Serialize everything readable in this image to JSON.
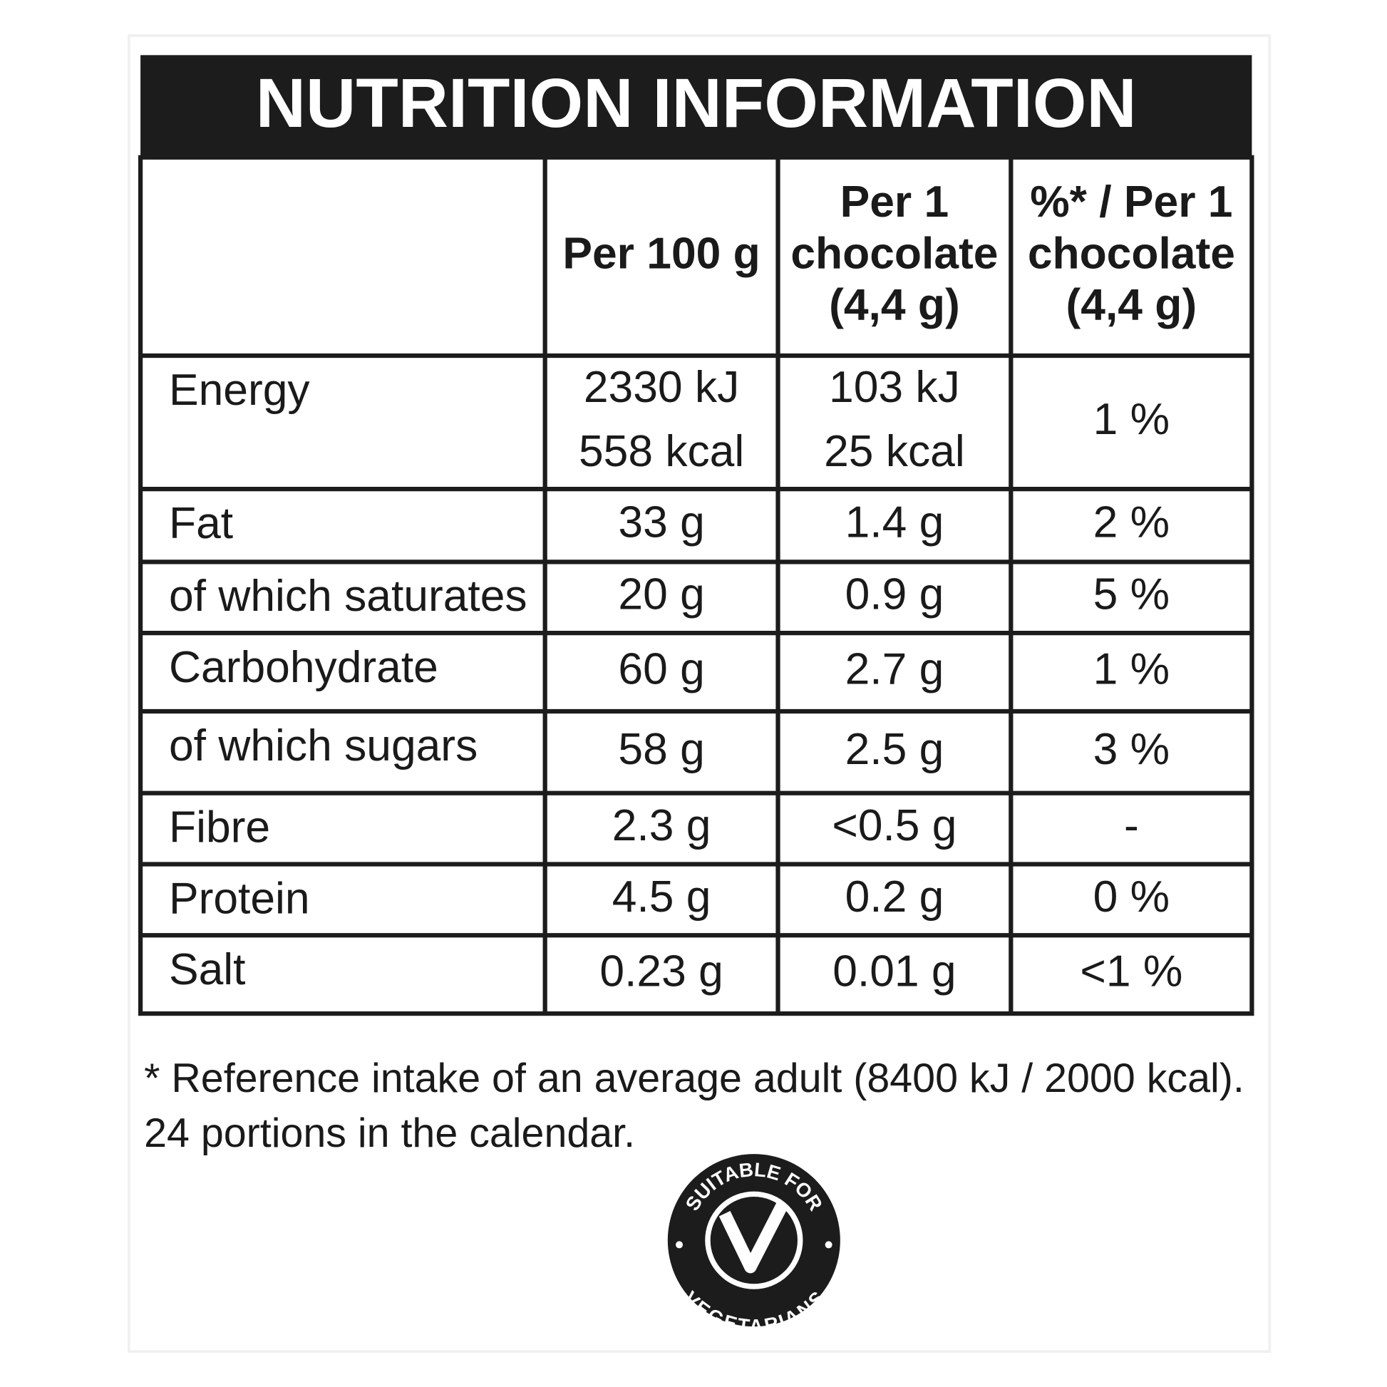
{
  "title": "NUTRITION INFORMATION",
  "table": {
    "header": [
      [],
      [
        "Per 100 g"
      ],
      [
        "Per 1",
        "chocolate",
        "(4,4 g)"
      ],
      [
        "%* / Per 1",
        "chocolate",
        "(4,4 g)"
      ]
    ],
    "rows": [
      [
        [
          "Energy"
        ],
        [
          "2330 kJ",
          "558 kcal"
        ],
        [
          "103 kJ",
          "25 kcal"
        ],
        [
          "1 %"
        ]
      ],
      [
        [
          "Fat"
        ],
        [
          "33 g"
        ],
        [
          "1.4 g"
        ],
        [
          "2 %"
        ]
      ],
      [
        [
          "of which saturates"
        ],
        [
          "20 g"
        ],
        [
          "0.9 g"
        ],
        [
          "5 %"
        ]
      ],
      [
        [
          "Carbohydrate"
        ],
        [
          "60 g"
        ],
        [
          "2.7 g"
        ],
        [
          "1 %"
        ]
      ],
      [
        [
          "of which sugars"
        ],
        [
          "58 g"
        ],
        [
          "2.5 g"
        ],
        [
          "3 %"
        ]
      ],
      [
        [
          "Fibre"
        ],
        [
          "2.3 g"
        ],
        [
          "<0.5 g"
        ],
        [
          "-"
        ]
      ],
      [
        [
          "Protein"
        ],
        [
          "4.5 g"
        ],
        [
          "0.2 g"
        ],
        [
          "0 %"
        ]
      ],
      [
        [
          "Salt"
        ],
        [
          "0.23 g"
        ],
        [
          "0.01 g"
        ],
        [
          "<1 %"
        ]
      ]
    ]
  },
  "footnote": [
    "* Reference intake of an average adult (8400 kJ / 2000 kcal).",
    "24 portions in the calendar."
  ],
  "badge": {
    "top": "SUITABLE FOR",
    "bottom": "VEGETARIANS"
  }
}
